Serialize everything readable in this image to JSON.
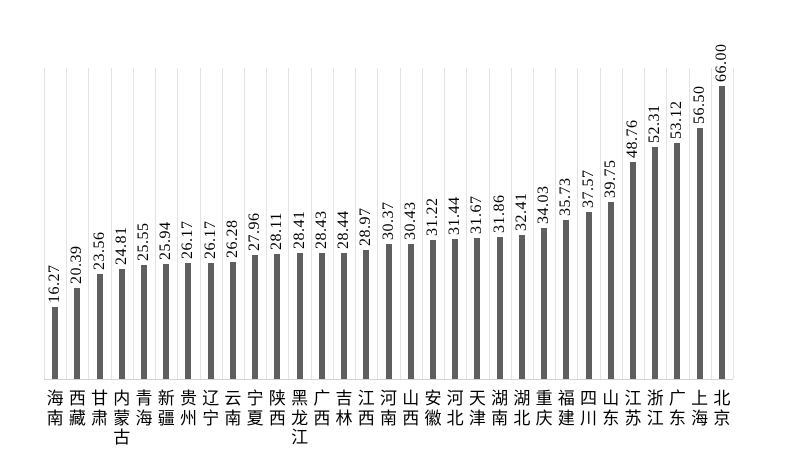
{
  "chart_data": {
    "type": "bar",
    "title": "",
    "xlabel": "",
    "ylabel": "",
    "categories": [
      "海南",
      "西藏",
      "甘肃",
      "内蒙古",
      "青海",
      "新疆",
      "贵州",
      "辽宁",
      "云南",
      "宁夏",
      "陕西",
      "黑龙江",
      "广西",
      "吉林",
      "江西",
      "河南",
      "山西",
      "安徽",
      "河北",
      "天津",
      "湖南",
      "湖北",
      "重庆",
      "福建",
      "四川",
      "山东",
      "江苏",
      "浙江",
      "广东",
      "上海",
      "北京"
    ],
    "values": [
      16.27,
      20.39,
      23.56,
      24.81,
      25.55,
      25.94,
      26.17,
      26.17,
      26.28,
      27.96,
      28.11,
      28.41,
      28.43,
      28.44,
      28.97,
      30.37,
      30.43,
      31.22,
      31.44,
      31.67,
      31.86,
      32.41,
      34.03,
      35.73,
      37.57,
      39.75,
      48.76,
      52.31,
      53.12,
      56.5,
      66.0
    ],
    "value_labels": [
      "16.27",
      "20.39",
      "23.56",
      "24.81",
      "25.55",
      "25.94",
      "26.17",
      "26.17",
      "26.28",
      "27.96",
      "28.11",
      "28.41",
      "28.43",
      "28.44",
      "28.97",
      "30.37",
      "30.43",
      "31.22",
      "31.44",
      "31.67",
      "31.86",
      "32.41",
      "34.03",
      "35.73",
      "37.57",
      "39.75",
      "48.76",
      "52.31",
      "53.12",
      "56.50",
      "66.00"
    ],
    "ylim": [
      0,
      70
    ],
    "grid": "vertical-category-separators",
    "legend": "none",
    "value_label_rotation": -90,
    "bar_color": "#5f5f5f",
    "gridline_color": "#e4e4e4",
    "axis_line_color": "#d2d2d2",
    "text_color": "#000000",
    "background_color": "#ffffff"
  }
}
